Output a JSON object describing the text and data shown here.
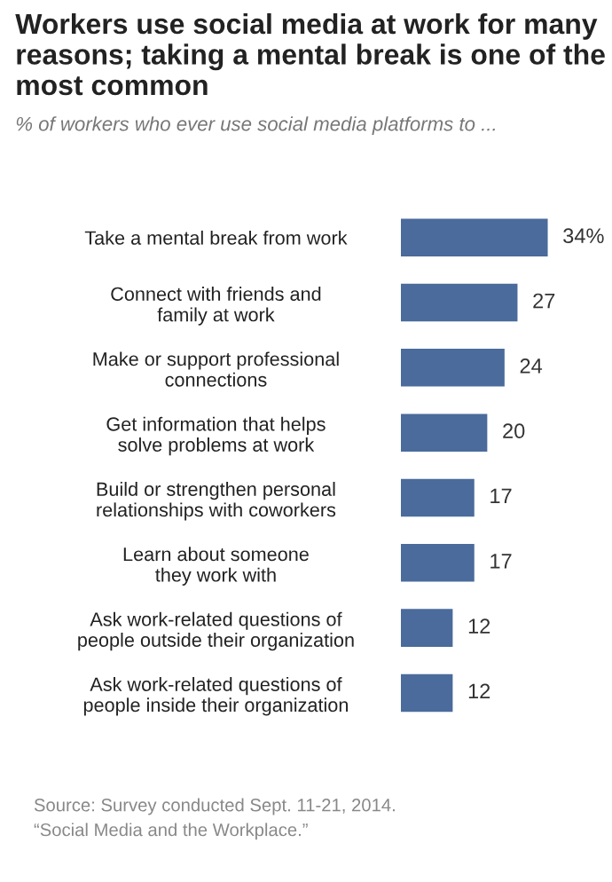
{
  "chart_data": {
    "type": "bar",
    "orientation": "horizontal",
    "title": "Workers use social media at work for many reasons; taking a mental break is one of the most common",
    "subtitle": "% of workers who ever use social media platforms to ...",
    "categories": [
      "Take a mental break from work",
      "Connect with friends and\nfamily at work",
      "Make or support professional\nconnections",
      "Get information that helps\nsolve problems at work",
      "Build or strengthen personal\nrelationships with coworkers",
      "Learn about someone\nthey work with",
      "Ask work-related questions of\npeople outside their organization",
      "Ask work-related questions of\npeople inside their organization"
    ],
    "values": [
      34,
      27,
      24,
      20,
      17,
      17,
      12,
      12
    ],
    "value_labels": [
      "34%",
      "27",
      "24",
      "20",
      "17",
      "17",
      "12",
      "12"
    ],
    "color": "#4a6b9b",
    "grid": false,
    "legend": false,
    "annotations": [
      "Source: Survey conducted Sept. 11-21, 2014.",
      "“Social Media and the Workplace.”"
    ]
  }
}
